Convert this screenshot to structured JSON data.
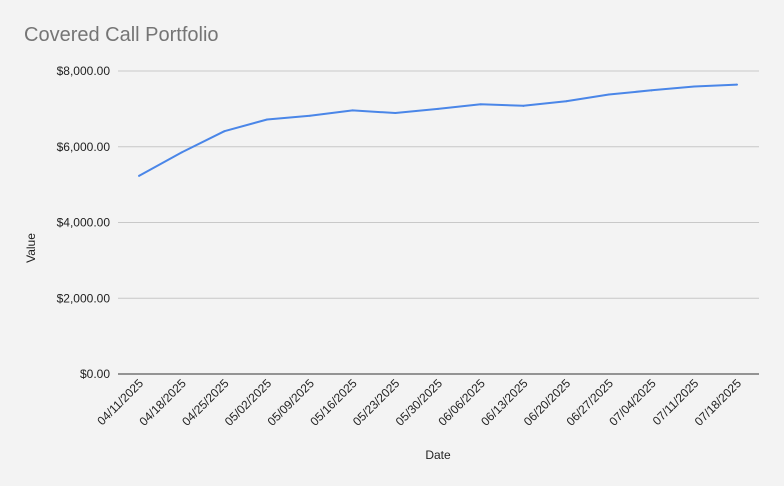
{
  "chart_data": {
    "type": "line",
    "title": "Covered Call Portfolio",
    "xlabel": "Date",
    "ylabel": "Value",
    "categories": [
      "04/11/2025",
      "04/18/2025",
      "04/25/2025",
      "05/02/2025",
      "05/09/2025",
      "05/16/2025",
      "05/23/2025",
      "05/30/2025",
      "06/06/2025",
      "06/13/2025",
      "06/20/2025",
      "06/27/2025",
      "07/04/2025",
      "07/11/2025",
      "07/18/2025"
    ],
    "series": [
      {
        "values": [
          5230,
          5850,
          6410,
          6720,
          6820,
          6960,
          6890,
          7000,
          7120,
          7080,
          7200,
          7380,
          7490,
          7590,
          7640
        ]
      }
    ],
    "ylim": [
      0,
      8000
    ],
    "yticks": [
      "$0.00",
      "$2,000.00",
      "$4,000.00",
      "$6,000.00",
      "$8,000.00"
    ],
    "grid": true,
    "legend": "none",
    "colors": {
      "line": "#4a86e8",
      "grid": "#c8c8c8",
      "background": "#f3f3f3"
    }
  }
}
